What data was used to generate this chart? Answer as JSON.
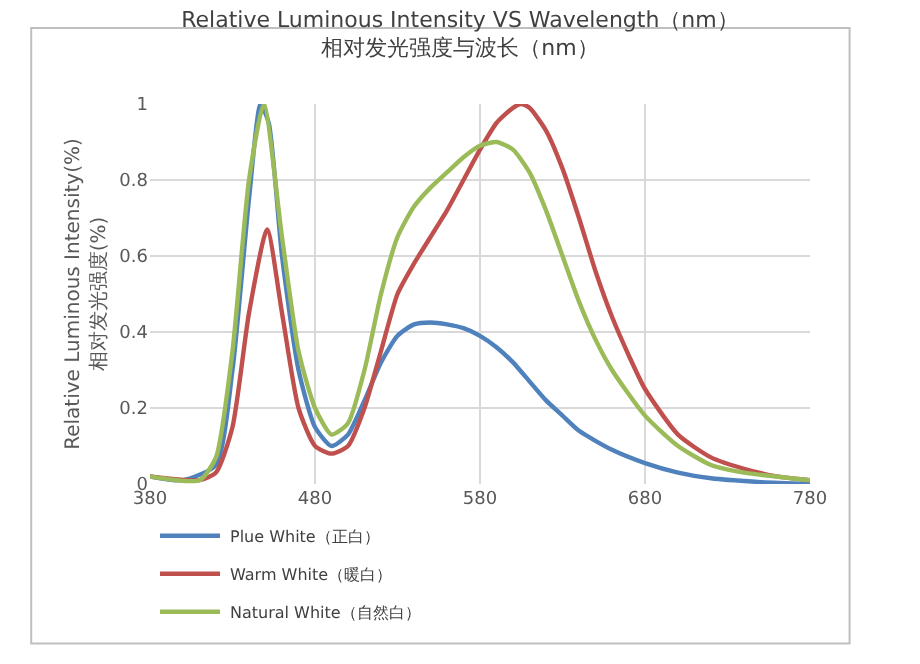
{
  "chart_data": {
    "type": "line",
    "title": "Relative Luminous Intensity VS Wavelength（nm）",
    "subtitle": "相对发光强度与波长（nm）",
    "ylabel": "Relative Luminous Intensity(%)\n相对发光强度(%)",
    "xlim": [
      380,
      780
    ],
    "xticks": [
      380,
      480,
      580,
      680,
      780
    ],
    "ylim": [
      0,
      1
    ],
    "yticks": [
      0,
      0.2,
      0.4,
      0.6,
      0.8,
      1
    ],
    "grid": true,
    "legend": "bottom",
    "marker": "none",
    "line_style": "solid",
    "series": [
      {
        "name": "Plue White（正白）",
        "color": "#4f81bd",
        "x": [
          380,
          400,
          420,
          430,
          440,
          447,
          452,
          460,
          470,
          480,
          490,
          500,
          510,
          520,
          530,
          540,
          550,
          560,
          570,
          580,
          590,
          600,
          610,
          620,
          630,
          640,
          660,
          680,
          700,
          720,
          750,
          780
        ],
        "values": [
          0.02,
          0.01,
          0.05,
          0.3,
          0.75,
          1.0,
          0.95,
          0.6,
          0.3,
          0.15,
          0.1,
          0.13,
          0.22,
          0.32,
          0.39,
          0.42,
          0.425,
          0.42,
          0.41,
          0.39,
          0.36,
          0.32,
          0.27,
          0.22,
          0.18,
          0.14,
          0.09,
          0.055,
          0.03,
          0.015,
          0.005,
          0.0
        ]
      },
      {
        "name": "Warm White（暖白）",
        "color": "#c0504d",
        "x": [
          380,
          410,
          420,
          430,
          440,
          451,
          460,
          470,
          480,
          490,
          500,
          510,
          520,
          530,
          540,
          550,
          560,
          570,
          580,
          590,
          600,
          605,
          610,
          620,
          630,
          640,
          650,
          660,
          670,
          680,
          700,
          720,
          740,
          760,
          780
        ],
        "values": [
          0.02,
          0.01,
          0.03,
          0.15,
          0.45,
          0.67,
          0.45,
          0.2,
          0.1,
          0.08,
          0.1,
          0.2,
          0.35,
          0.5,
          0.58,
          0.65,
          0.72,
          0.8,
          0.88,
          0.95,
          0.99,
          1.0,
          0.99,
          0.93,
          0.83,
          0.7,
          0.56,
          0.44,
          0.34,
          0.25,
          0.13,
          0.07,
          0.04,
          0.02,
          0.01
        ]
      },
      {
        "name": "Natural White（自然白）",
        "color": "#9bbb59",
        "x": [
          380,
          410,
          420,
          430,
          440,
          449,
          460,
          470,
          480,
          490,
          500,
          510,
          520,
          530,
          540,
          550,
          560,
          570,
          580,
          590,
          600,
          610,
          620,
          630,
          640,
          650,
          660,
          680,
          700,
          720,
          740,
          780
        ],
        "values": [
          0.02,
          0.01,
          0.07,
          0.35,
          0.8,
          1.0,
          0.65,
          0.35,
          0.2,
          0.13,
          0.16,
          0.3,
          0.5,
          0.65,
          0.73,
          0.78,
          0.82,
          0.86,
          0.89,
          0.9,
          0.88,
          0.82,
          0.72,
          0.6,
          0.48,
          0.38,
          0.3,
          0.18,
          0.1,
          0.05,
          0.03,
          0.01
        ]
      }
    ]
  }
}
